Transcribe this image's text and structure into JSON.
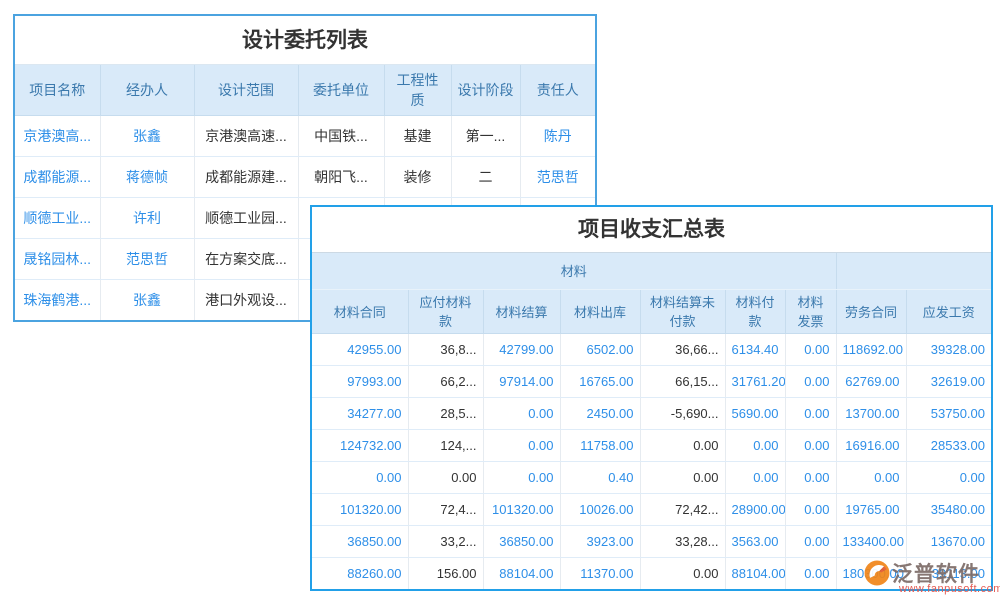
{
  "design_table": {
    "title": "设计委托列表",
    "columns": [
      "项目名称",
      "经办人",
      "设计范围",
      "委托单位",
      "工程性质",
      "设计阶段",
      "责任人"
    ],
    "link_columns": [
      0,
      1,
      6
    ],
    "rows": [
      [
        "京港澳高...",
        "张鑫",
        "京港澳高速...",
        "中国铁...",
        "基建",
        "第一...",
        "陈丹"
      ],
      [
        "成都能源...",
        "蒋德帧",
        "成都能源建...",
        "朝阳飞...",
        "装修",
        "二",
        "范思哲"
      ],
      [
        "顺德工业...",
        "许利",
        "顺德工业园...",
        "",
        "",
        "",
        ""
      ],
      [
        "晟铭园林...",
        "范思哲",
        "在方案交底...",
        "",
        "",
        "",
        ""
      ],
      [
        "珠海鹤港...",
        "张鑫",
        "港口外观设...",
        "",
        "",
        "",
        ""
      ]
    ]
  },
  "summary_table": {
    "title": "项目收支汇总表",
    "group_header": {
      "label": "材料",
      "span": 7,
      "label2": "",
      "span2": 2
    },
    "columns": [
      "材料合同",
      "应付材料款",
      "材料结算",
      "材料出库",
      "材料结算未付款",
      "材料付款",
      "材料发票",
      "劳务合同",
      "应发工资"
    ],
    "link_columns": [
      0,
      2,
      3,
      5,
      6,
      7,
      8
    ],
    "rows": [
      [
        "42955.00",
        "36,8...",
        "42799.00",
        "6502.00",
        "36,66...",
        "6134.40",
        "0.00",
        "118692.00",
        "39328.00"
      ],
      [
        "97993.00",
        "66,2...",
        "97914.00",
        "16765.00",
        "66,15...",
        "31761.20",
        "0.00",
        "62769.00",
        "32619.00"
      ],
      [
        "34277.00",
        "28,5...",
        "0.00",
        "2450.00",
        "-5,690...",
        "5690.00",
        "0.00",
        "13700.00",
        "53750.00"
      ],
      [
        "124732.00",
        "124,...",
        "0.00",
        "11758.00",
        "0.00",
        "0.00",
        "0.00",
        "16916.00",
        "28533.00"
      ],
      [
        "0.00",
        "0.00",
        "0.00",
        "0.40",
        "0.00",
        "0.00",
        "0.00",
        "0.00",
        "0.00"
      ],
      [
        "101320.00",
        "72,4...",
        "101320.00",
        "10026.00",
        "72,42...",
        "28900.00",
        "0.00",
        "19765.00",
        "35480.00"
      ],
      [
        "36850.00",
        "33,2...",
        "36850.00",
        "3923.00",
        "33,28...",
        "3563.00",
        "0.00",
        "133400.00",
        "13670.00"
      ],
      [
        "88260.00",
        "156.00",
        "88104.00",
        "11370.00",
        "0.00",
        "88104.00",
        "0.00",
        "180300.00",
        "39113.00"
      ]
    ]
  },
  "watermark": {
    "brand": "泛普软件",
    "url": "www.fanpusoft.com"
  },
  "colors": {
    "design_panel_border": "#4ba3e0",
    "summary_panel_border": "#22a0e8",
    "header_bg": "#d9eaf9",
    "header_text": "#3b79ad",
    "link_blue": "#2e8fe8",
    "dark_text": "#333333",
    "watermark_brand": "#7d6c68",
    "watermark_url_red": "#e2544b",
    "logo_orange": "#f08519"
  }
}
